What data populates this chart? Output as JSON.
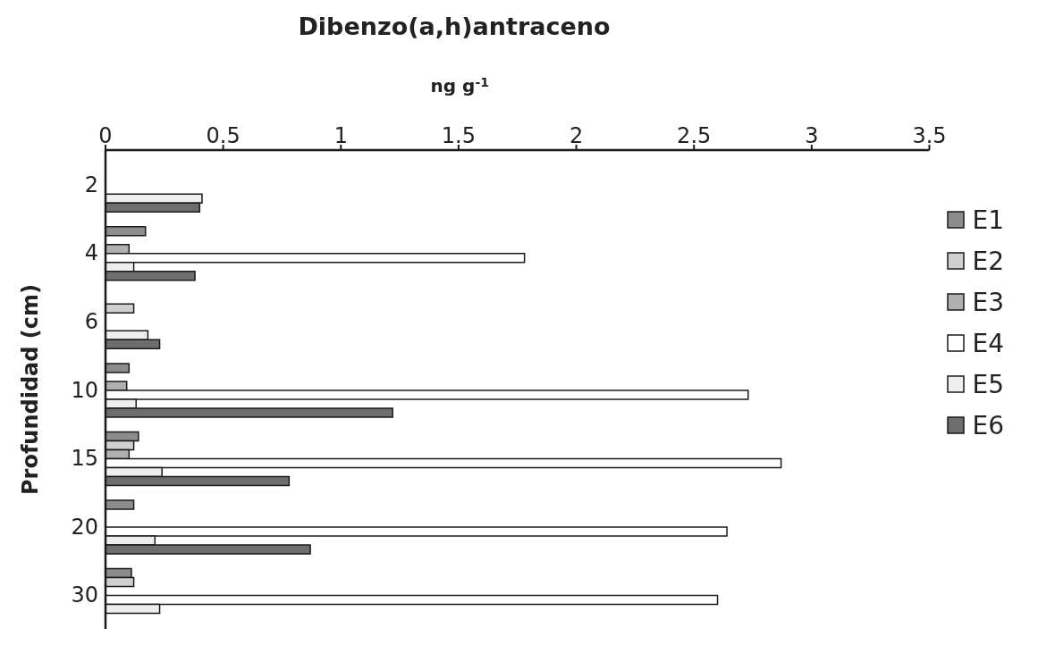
{
  "chart_data": {
    "type": "bar",
    "orientation": "horizontal",
    "title": "Dibenzo(a,h)antraceno",
    "xlabel": "ng g$^{-1}$",
    "ylabel": "Profundidad (cm)",
    "categories": [
      "2",
      "4",
      "6",
      "10",
      "15",
      "20",
      "30"
    ],
    "series": [
      {
        "name": "E1",
        "color": "#8c8c8c",
        "values": [
          null,
          0.17,
          null,
          0.1,
          0.14,
          0.12,
          0.11
        ]
      },
      {
        "name": "E2",
        "color": "#d0d0d0",
        "values": [
          null,
          null,
          0.12,
          null,
          0.12,
          null,
          0.12
        ]
      },
      {
        "name": "E3",
        "color": "#b0b0b0",
        "values": [
          null,
          0.1,
          null,
          0.09,
          0.1,
          null,
          null
        ]
      },
      {
        "name": "E4",
        "color": "#ffffff",
        "values": [
          null,
          1.78,
          null,
          2.73,
          2.87,
          2.64,
          2.6
        ]
      },
      {
        "name": "E5",
        "color": "#eeeeee",
        "values": [
          0.41,
          0.12,
          0.18,
          0.13,
          0.24,
          0.21,
          0.23
        ]
      },
      {
        "name": "E6",
        "color": "#6e6e6e",
        "values": [
          0.4,
          0.38,
          0.23,
          1.22,
          0.78,
          0.87,
          null
        ]
      }
    ],
    "xlim": [
      0,
      3.5
    ],
    "xticks": [
      0,
      0.5,
      1,
      1.5,
      2,
      2.5,
      3,
      3.5
    ],
    "grid": false,
    "legend": "right"
  }
}
